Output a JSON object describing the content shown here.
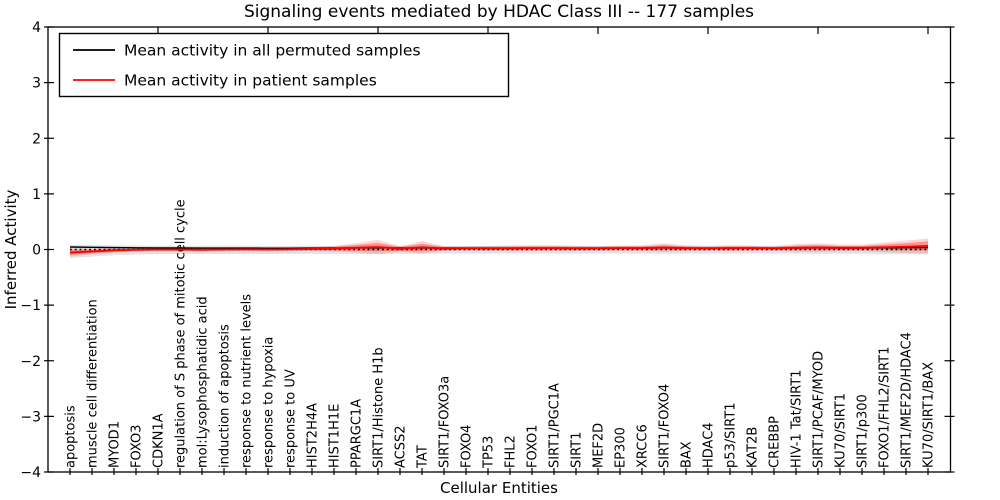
{
  "chart_data": {
    "type": "line",
    "title": "Signaling events mediated by HDAC Class III -- 177 samples",
    "xlabel": "Cellular Entities",
    "ylabel": "Inferred Activity",
    "ylim": [
      -4,
      4
    ],
    "yticks": [
      4,
      3,
      2,
      1,
      0,
      -1,
      -2,
      -3,
      -4
    ],
    "grid": false,
    "legend_position": "upper left",
    "legend": [
      {
        "label": "Mean activity in all permuted samples",
        "color": "#000000",
        "style": "solid"
      },
      {
        "label": "Mean activity in patient samples",
        "color": "#ff0000",
        "style": "solid"
      }
    ],
    "categories": [
      "apoptosis",
      "muscle cell differentiation",
      "MYOD1",
      "FOXO3",
      "CDKN1A",
      "regulation of S phase of mitotic cell cycle",
      "mol:Lysophosphatidic acid",
      "induction of apoptosis",
      "response to nutrient levels",
      "response to hypoxia",
      "response to UV",
      "HIST2H4A",
      "HIST1H1E",
      "PPARGC1A",
      "SIRT1/Histone H1b",
      "ACSS2",
      "TAT",
      "SIRT1/FOXO3a",
      "FOXO4",
      "TP53",
      "FHL2",
      "FOXO1",
      "SIRT1/PGC1A",
      "SIRT1",
      "MEF2D",
      "EP300",
      "XRCC6",
      "SIRT1/FOXO4",
      "BAX",
      "HDAC4",
      "p53/SIRT1",
      "KAT2B",
      "CREBBP",
      "HIV-1 Tat/SIRT1",
      "SIRT1/PCAF/MYOD",
      "KU70/SIRT1",
      "SIRT1/p300",
      "FOXO1/FHL2/SIRT1",
      "SIRT1/MEF2D/HDAC4",
      "KU70/SIRT1/BAX"
    ],
    "series": [
      {
        "name": "Mean activity in all permuted samples",
        "color": "#000000",
        "style": "solid",
        "values": [
          0.045,
          0.04,
          0.035,
          0.03,
          0.028,
          0.027,
          0.026,
          0.025,
          0.025,
          0.024,
          0.024,
          0.025,
          0.026,
          0.028,
          0.03,
          0.026,
          0.028,
          0.025,
          0.025,
          0.025,
          0.025,
          0.026,
          0.026,
          0.025,
          0.025,
          0.025,
          0.026,
          0.028,
          0.026,
          0.025,
          0.026,
          0.026,
          0.025,
          0.027,
          0.028,
          0.027,
          0.027,
          0.03,
          0.032,
          0.035
        ]
      },
      {
        "name": "zero reference",
        "color": "#000000",
        "style": "dotted",
        "values": [
          0,
          0,
          0,
          0,
          0,
          0,
          0,
          0,
          0,
          0,
          0,
          0,
          0,
          0,
          0,
          0,
          0,
          0,
          0,
          0,
          0,
          0,
          0,
          0,
          0,
          0,
          0,
          0,
          0,
          0,
          0,
          0,
          0,
          0,
          0,
          0,
          0,
          0,
          0,
          0
        ]
      },
      {
        "name": "Mean activity in patient samples",
        "color": "#ff0000",
        "style": "solid",
        "values": [
          -0.055,
          -0.035,
          -0.015,
          -0.005,
          0.0,
          0.0,
          -0.005,
          0.0,
          0.005,
          0.0,
          0.005,
          0.01,
          0.015,
          0.03,
          0.045,
          0.01,
          0.04,
          0.015,
          0.02,
          0.02,
          0.02,
          0.025,
          0.025,
          0.02,
          0.02,
          0.025,
          0.025,
          0.035,
          0.025,
          0.02,
          0.025,
          0.025,
          0.02,
          0.03,
          0.035,
          0.03,
          0.03,
          0.04,
          0.05,
          0.065
        ]
      }
    ],
    "bands": [
      {
        "name": "permuted samples spread",
        "color": "rgba(0,0,0,0.11)",
        "lo": [
          -0.155,
          -0.125,
          -0.1,
          -0.09,
          -0.085,
          -0.08,
          -0.08,
          -0.08,
          -0.08,
          -0.08,
          -0.08,
          -0.078,
          -0.078,
          -0.08,
          -0.082,
          -0.078,
          -0.08,
          -0.075,
          -0.075,
          -0.075,
          -0.075,
          -0.075,
          -0.075,
          -0.075,
          -0.075,
          -0.075,
          -0.075,
          -0.078,
          -0.074,
          -0.074,
          -0.074,
          -0.074,
          -0.074,
          -0.076,
          -0.078,
          -0.076,
          -0.076,
          -0.08,
          -0.084,
          -0.09
        ],
        "hi": [
          0.085,
          0.08,
          0.075,
          0.07,
          0.07,
          0.065,
          0.065,
          0.065,
          0.065,
          0.065,
          0.065,
          0.065,
          0.065,
          0.07,
          0.072,
          0.065,
          0.07,
          0.062,
          0.062,
          0.062,
          0.062,
          0.062,
          0.062,
          0.062,
          0.062,
          0.062,
          0.062,
          0.066,
          0.06,
          0.06,
          0.06,
          0.06,
          0.06,
          0.064,
          0.066,
          0.063,
          0.064,
          0.068,
          0.072,
          0.078
        ]
      },
      {
        "name": "patient samples spread",
        "color_outer": "rgba(255,0,0,0.16)",
        "color_inner": "rgba(255,0,0,0.32)",
        "half_width": [
          0.04,
          0.03,
          0.025,
          0.02,
          0.02,
          0.02,
          0.02,
          0.018,
          0.018,
          0.018,
          0.02,
          0.022,
          0.03,
          0.05,
          0.075,
          0.03,
          0.065,
          0.025,
          0.025,
          0.028,
          0.03,
          0.03,
          0.03,
          0.028,
          0.026,
          0.028,
          0.03,
          0.045,
          0.03,
          0.026,
          0.03,
          0.028,
          0.026,
          0.04,
          0.045,
          0.035,
          0.035,
          0.05,
          0.065,
          0.08
        ]
      }
    ]
  }
}
